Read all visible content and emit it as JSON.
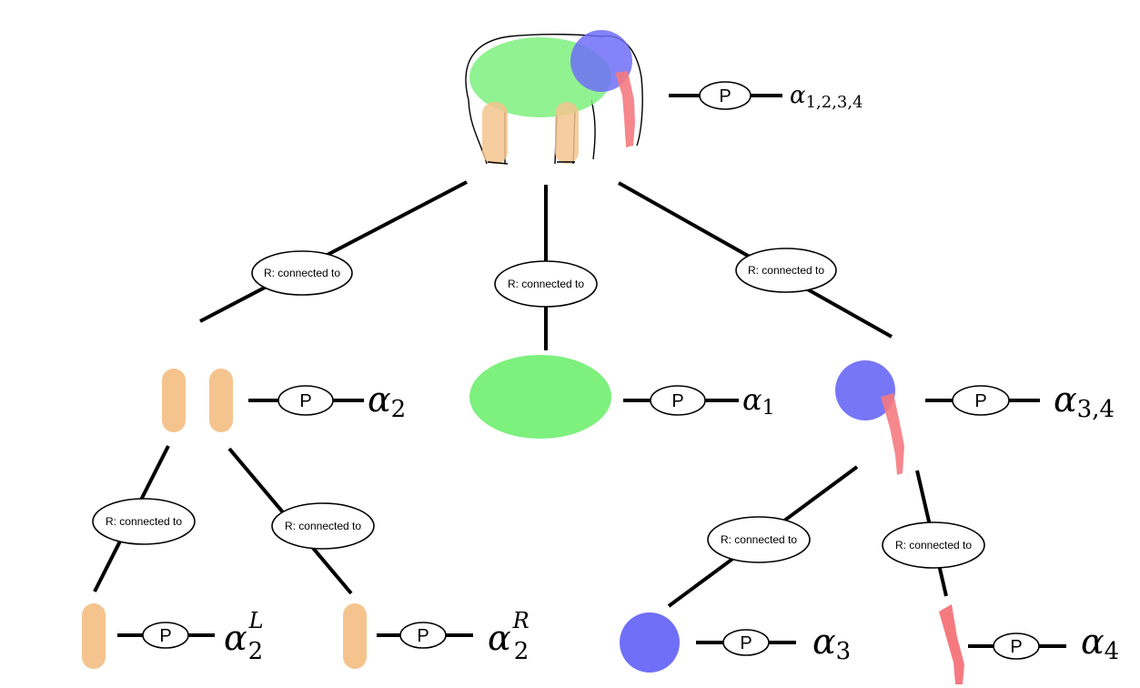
{
  "colors": {
    "leg": "#f5c48e",
    "body": "#7df07d",
    "head": "#6f6ff7",
    "trunk": "#f57a80"
  },
  "relation_label": "R: connected to",
  "property_label": "P",
  "nodes": {
    "root": {
      "symbol": "α",
      "subscript": "1,2,3,4"
    },
    "legs": {
      "symbol": "α",
      "subscript": "2"
    },
    "body": {
      "symbol": "α",
      "subscript": "1"
    },
    "head_trunk": {
      "symbol": "α",
      "subscript": "3,4"
    },
    "leg_left": {
      "symbol": "α",
      "subscript": "2",
      "superscript": "L"
    },
    "leg_right": {
      "symbol": "α",
      "subscript": "2",
      "superscript": "R"
    },
    "head": {
      "symbol": "α",
      "subscript": "3"
    },
    "trunk": {
      "symbol": "α",
      "subscript": "4"
    }
  }
}
